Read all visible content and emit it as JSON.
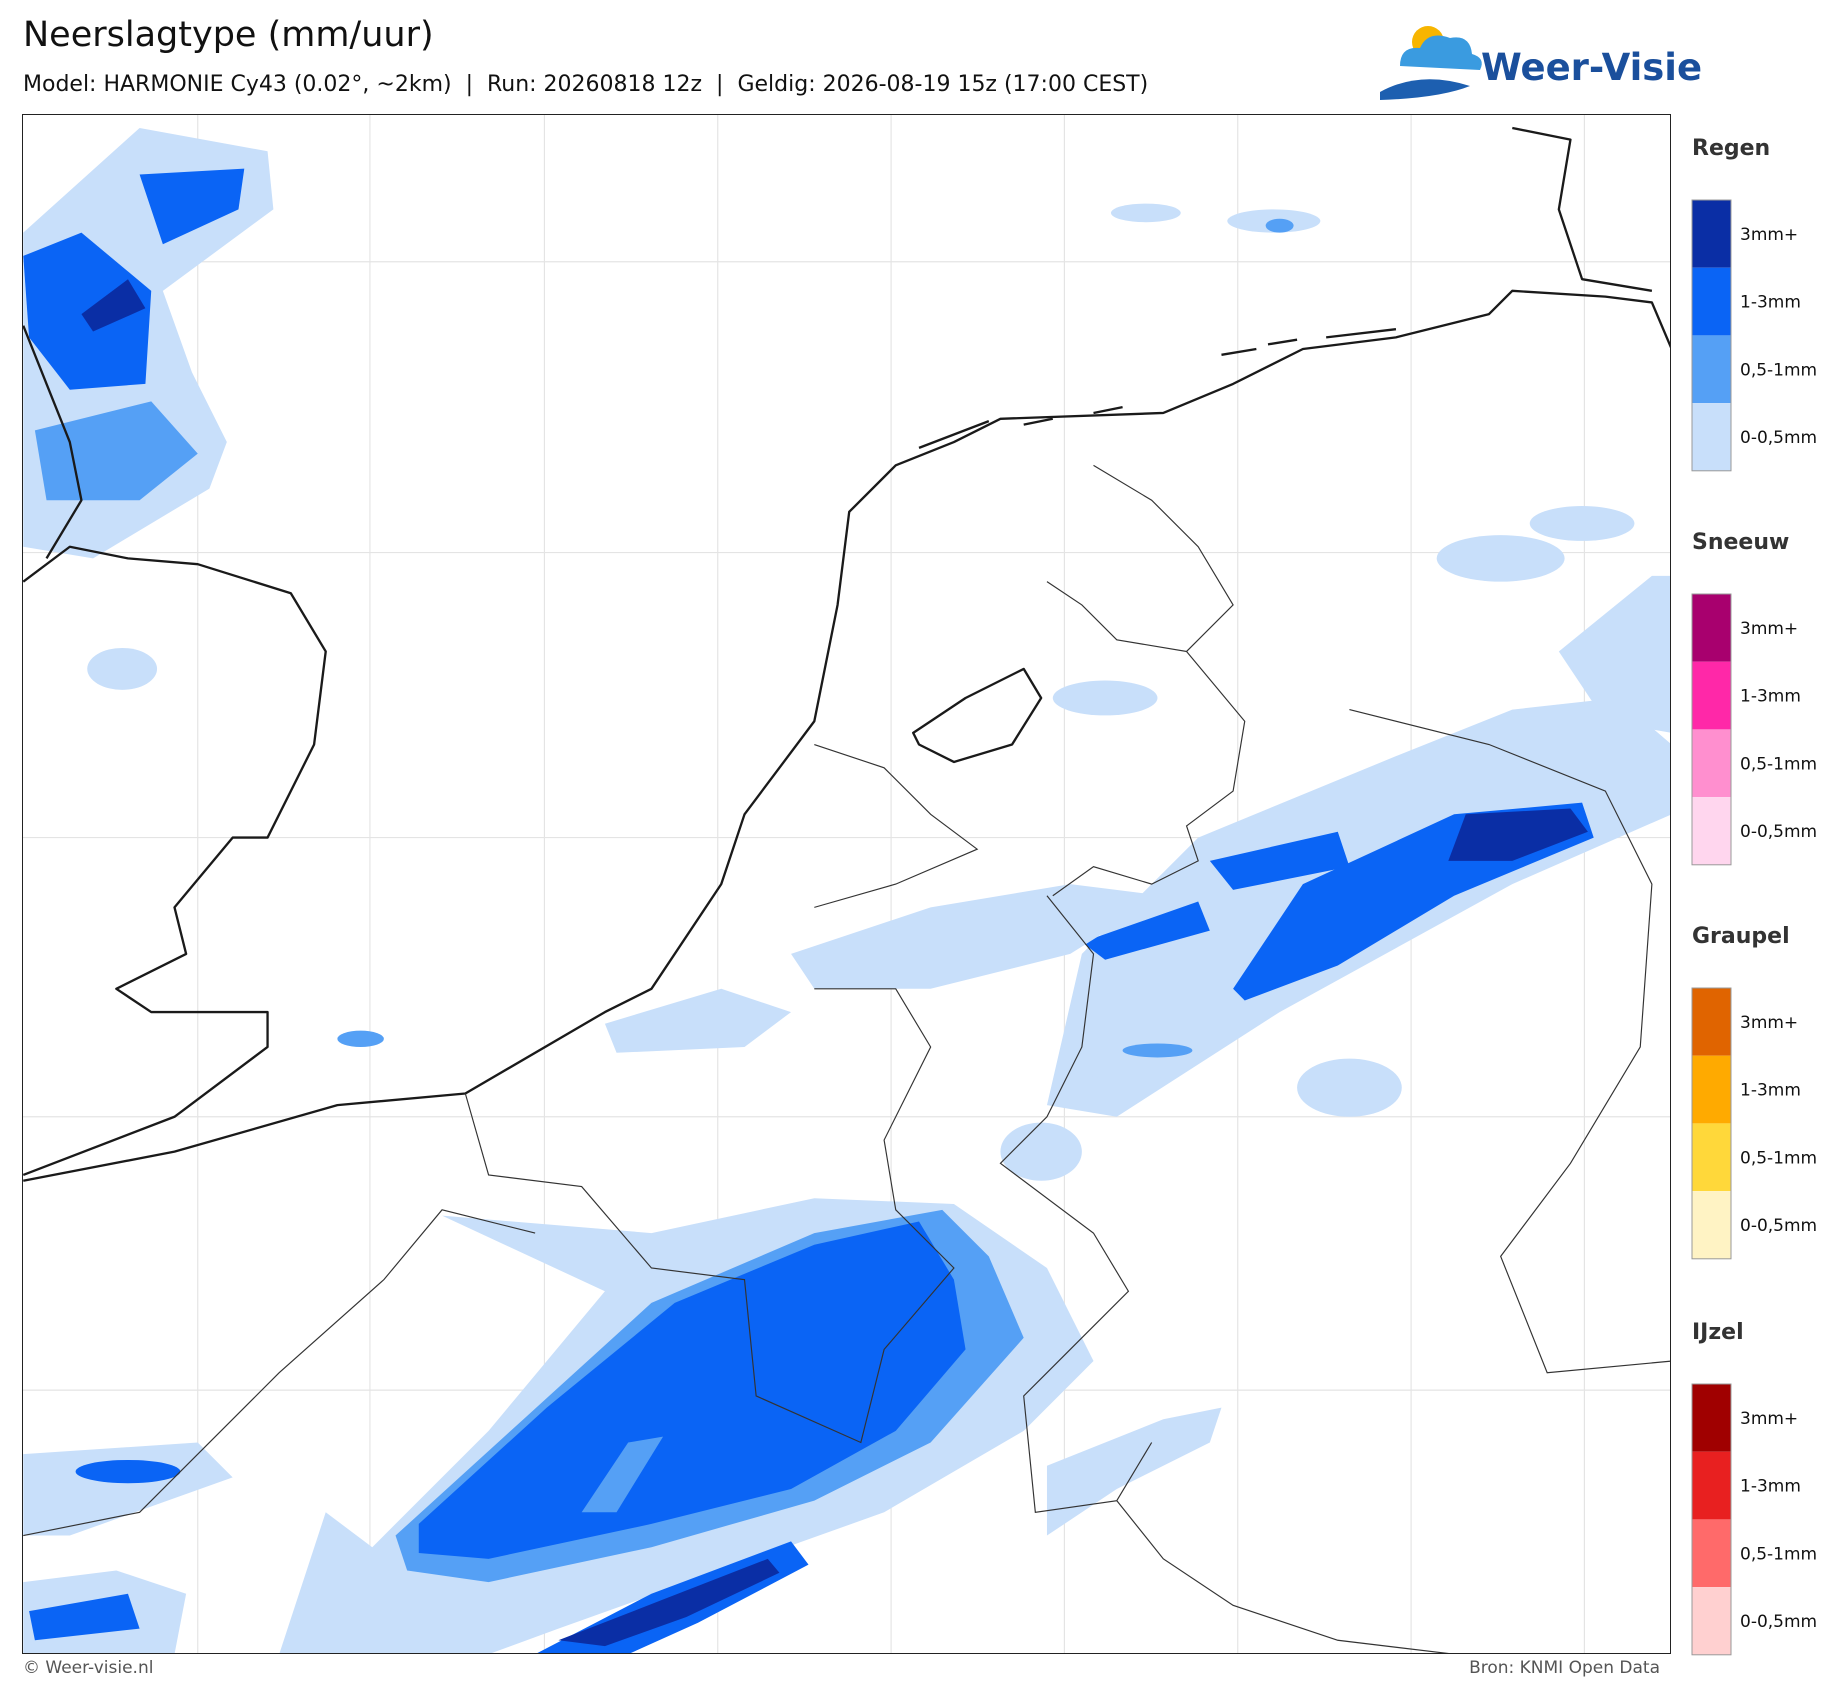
{
  "header": {
    "title": "Neerslagtype (mm/uur)",
    "subtitle": "Model: HARMONIE Cy43 (0.02°, ~2km)  |  Run: 20260818 12z  |  Geldig: 2026-08-19 15z (17:00 CEST)",
    "logo": "Weer-Visie"
  },
  "legend": [
    {
      "title": "Regen",
      "items": [
        {
          "label": "3mm+",
          "color": "#0a2ea5"
        },
        {
          "label": "1-3mm",
          "color": "#0a64f5"
        },
        {
          "label": "0,5-1mm",
          "color": "#55a0f5"
        },
        {
          "label": "0-0,5mm",
          "color": "#c8dffa"
        }
      ]
    },
    {
      "title": "Sneeuw",
      "items": [
        {
          "label": "3mm+",
          "color": "#a8006e"
        },
        {
          "label": "1-3mm",
          "color": "#ff28a8"
        },
        {
          "label": "0,5-1mm",
          "color": "#ff8fcf"
        },
        {
          "label": "0-0,5mm",
          "color": "#ffd6ee"
        }
      ]
    },
    {
      "title": "Graupel",
      "items": [
        {
          "label": "3mm+",
          "color": "#e06400"
        },
        {
          "label": "1-3mm",
          "color": "#ffaa00"
        },
        {
          "label": "0,5-1mm",
          "color": "#ffd83a"
        },
        {
          "label": "0-0,5mm",
          "color": "#fff3c4"
        }
      ]
    },
    {
      "title": "IJzel",
      "items": [
        {
          "label": "3mm+",
          "color": "#a00000"
        },
        {
          "label": "1-3mm",
          "color": "#e82020"
        },
        {
          "label": "0,5-1mm",
          "color": "#ff6a6a"
        },
        {
          "label": "0-0,5mm",
          "color": "#ffd0d0"
        }
      ]
    }
  ],
  "footer": {
    "left": "© Weer-visie.nl",
    "right": "Bron: KNMI Open Data"
  }
}
